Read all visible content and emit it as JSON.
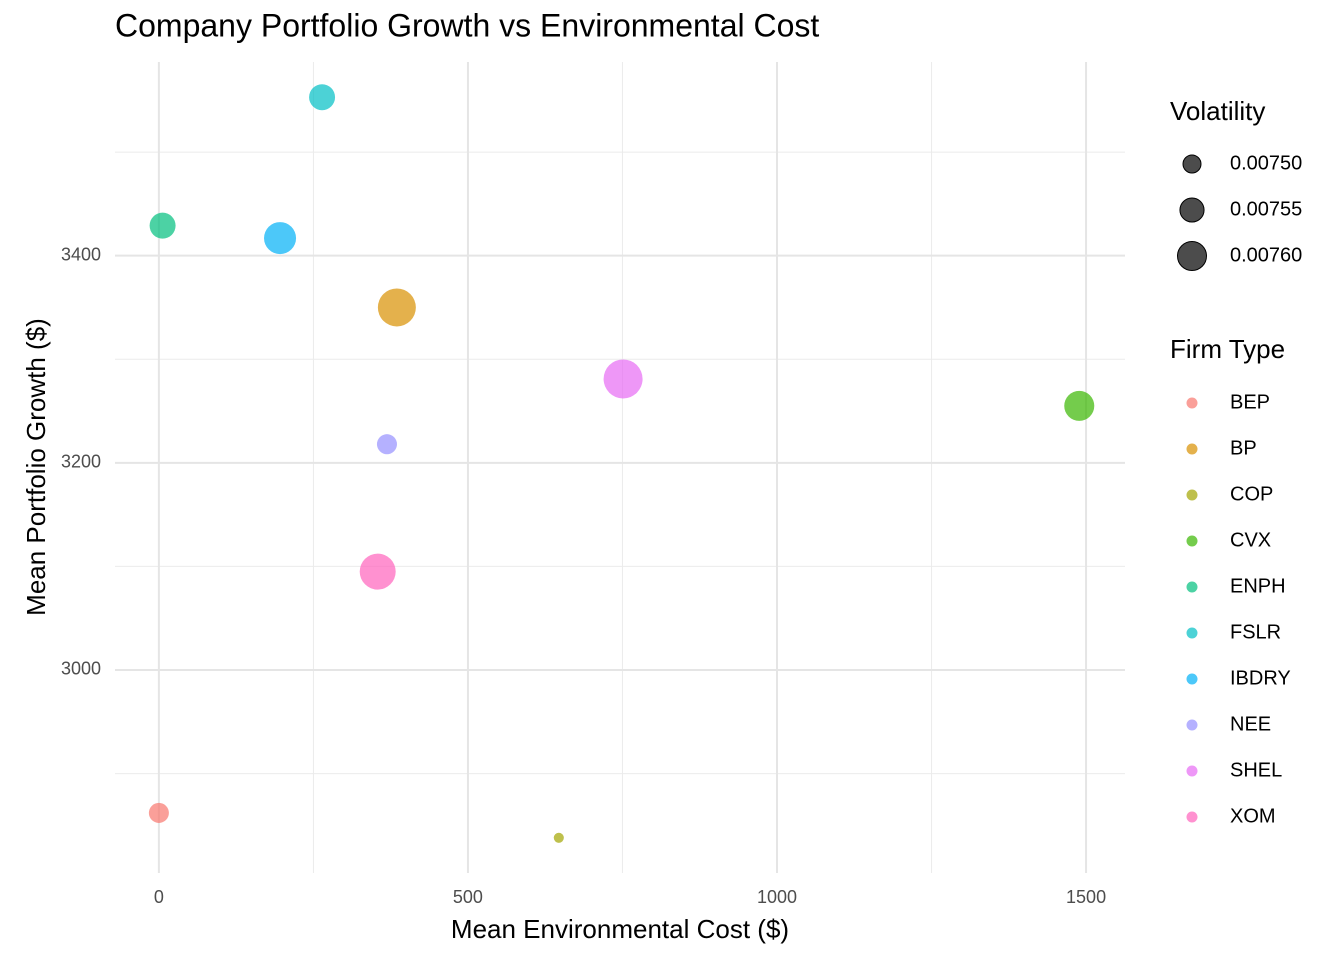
{
  "chart_data": {
    "type": "scatter",
    "title": "Company Portfolio Growth vs Environmental Cost",
    "x_label": "Mean Environmental Cost ($)",
    "y_label": "Mean Portfolio Growth ($)",
    "xlim": [
      -71,
      1563
    ],
    "ylim": [
      2804,
      3587
    ],
    "xticks": [
      0,
      500,
      1000,
      1500
    ],
    "yticks": [
      3000,
      3200,
      3400
    ],
    "x_minor_ticks": [
      250,
      750,
      1250
    ],
    "y_minor_ticks": [
      2900,
      3100,
      3300,
      3500
    ],
    "grid": true,
    "alpha": 0.7,
    "size_legend": {
      "title": "Volatility",
      "values": [
        {
          "value": 0.0075,
          "label": "0.00750"
        },
        {
          "value": 0.00755,
          "label": "0.00755"
        },
        {
          "value": 0.0076,
          "label": "0.00760"
        }
      ]
    },
    "color_legend_title": "Firm Type",
    "series": [
      {
        "name": "BEP",
        "color": "#F8766D",
        "x": 0,
        "y": 2862,
        "size": 0.007515
      },
      {
        "name": "BP",
        "color": "#D89000",
        "x": 385,
        "y": 3350,
        "size": 0.007717
      },
      {
        "name": "COP",
        "color": "#A3A500",
        "x": 647,
        "y": 2838,
        "size": 0.007457
      },
      {
        "name": "CVX",
        "color": "#39B600",
        "x": 1489,
        "y": 3255,
        "size": 0.007612
      },
      {
        "name": "ENPH",
        "color": "#00BF7D",
        "x": 6,
        "y": 3429,
        "size": 0.007568
      },
      {
        "name": "FSLR",
        "color": "#00BFC4",
        "x": 264,
        "y": 3553,
        "size": 0.007568
      },
      {
        "name": "IBDRY",
        "color": "#00B0F6",
        "x": 196,
        "y": 3417,
        "size": 0.007636
      },
      {
        "name": "NEE",
        "color": "#9590FF",
        "x": 369,
        "y": 3218,
        "size": 0.007515
      },
      {
        "name": "SHEL",
        "color": "#E76BF3",
        "x": 751,
        "y": 3281,
        "size": 0.007732
      },
      {
        "name": "XOM",
        "color": "#FF62BC",
        "x": 354,
        "y": 3095,
        "size": 0.007688
      }
    ]
  }
}
